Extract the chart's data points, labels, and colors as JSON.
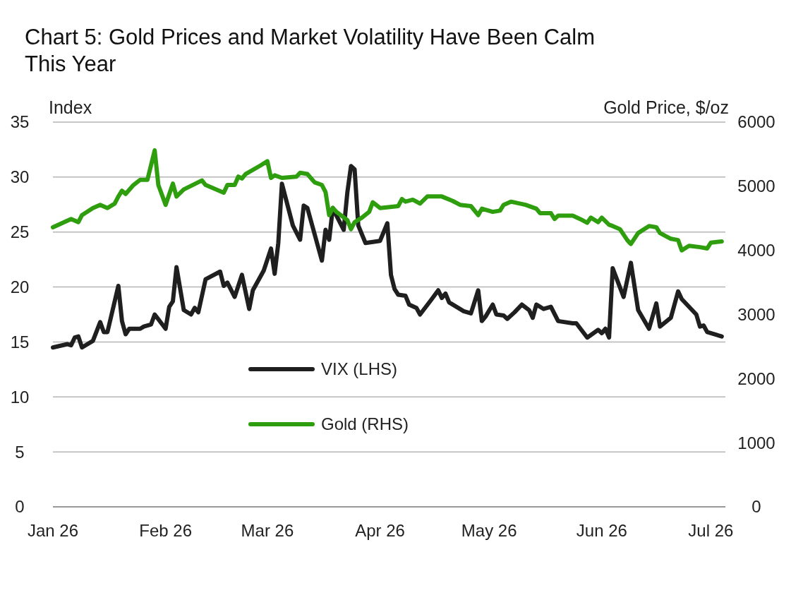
{
  "chart_data": {
    "type": "line",
    "title": "Chart 5: Gold Prices and Market Volatility Have Been Calm This Year",
    "ylabel": "Index",
    "y2label": "Gold Price, $/oz",
    "xlim": [
      "2026-01-01",
      "2026-07-05"
    ],
    "xticks": [
      {
        "value": "2026-01-01",
        "label": "Jan 26"
      },
      {
        "value": "2026-02-01",
        "label": "Feb 26"
      },
      {
        "value": "2026-03-01",
        "label": "Mar 26"
      },
      {
        "value": "2026-04-01",
        "label": "Apr 26"
      },
      {
        "value": "2026-05-01",
        "label": "May 26"
      },
      {
        "value": "2026-06-01",
        "label": "Jun 26"
      },
      {
        "value": "2026-07-01",
        "label": "Jul 26"
      }
    ],
    "ylim": [
      0,
      35
    ],
    "yticks": [
      0,
      5,
      10,
      15,
      20,
      25,
      30,
      35
    ],
    "y2lim": [
      0,
      6000
    ],
    "y2ticks": [
      0,
      1000,
      2000,
      3000,
      4000,
      5000,
      6000
    ],
    "grid": "y",
    "legend": "bottom left",
    "line_style": "solid",
    "marker": "none",
    "series": [
      {
        "name": "VIX (LHS)",
        "color": "#1f1f1f",
        "axis": "y",
        "x": [
          "2026-01-01",
          "2026-01-05",
          "2026-01-06",
          "2026-01-07",
          "2026-01-08",
          "2026-01-09",
          "2026-01-12",
          "2026-01-14",
          "2026-01-15",
          "2026-01-16",
          "2026-01-19",
          "2026-01-20",
          "2026-01-21",
          "2026-01-22",
          "2026-01-25",
          "2026-01-26",
          "2026-01-28",
          "2026-01-29",
          "2026-02-01",
          "2026-02-02",
          "2026-02-03",
          "2026-02-04",
          "2026-02-06",
          "2026-02-08",
          "2026-02-09",
          "2026-02-10",
          "2026-02-12",
          "2026-02-16",
          "2026-02-17",
          "2026-02-18",
          "2026-02-20",
          "2026-02-22",
          "2026-02-24",
          "2026-02-25",
          "2026-02-28",
          "2026-03-02",
          "2026-03-03",
          "2026-03-04",
          "2026-03-05",
          "2026-03-08",
          "2026-03-10",
          "2026-03-11",
          "2026-03-12",
          "2026-03-16",
          "2026-03-17",
          "2026-03-18",
          "2026-03-19",
          "2026-03-20",
          "2026-03-22",
          "2026-03-23",
          "2026-03-24",
          "2026-03-25",
          "2026-03-26",
          "2026-03-28",
          "2026-04-01",
          "2026-04-03",
          "2026-04-04",
          "2026-04-05",
          "2026-04-06",
          "2026-04-08",
          "2026-04-09",
          "2026-04-11",
          "2026-04-12",
          "2026-04-15",
          "2026-04-17",
          "2026-04-18",
          "2026-04-19",
          "2026-04-20",
          "2026-04-24",
          "2026-04-26",
          "2026-04-28",
          "2026-04-29",
          "2026-04-30",
          "2026-05-02",
          "2026-05-03",
          "2026-05-05",
          "2026-05-06",
          "2026-05-08",
          "2026-05-10",
          "2026-05-12",
          "2026-05-13",
          "2026-05-14",
          "2026-05-16",
          "2026-05-18",
          "2026-05-20",
          "2026-05-24",
          "2026-05-25",
          "2026-05-28",
          "2026-05-31",
          "2026-06-01",
          "2026-06-02",
          "2026-06-03",
          "2026-06-04",
          "2026-06-07",
          "2026-06-09",
          "2026-06-11",
          "2026-06-14",
          "2026-06-16",
          "2026-06-17",
          "2026-06-20",
          "2026-06-22",
          "2026-06-23",
          "2026-06-27",
          "2026-06-28",
          "2026-06-29",
          "2026-06-30",
          "2026-07-04"
        ],
        "values": [
          14.5,
          14.8,
          14.7,
          15.4,
          15.5,
          14.5,
          15.1,
          16.8,
          15.9,
          15.9,
          20.1,
          16.9,
          15.7,
          16.2,
          16.2,
          16.4,
          16.6,
          17.5,
          16.2,
          18.2,
          18.7,
          21.8,
          17.9,
          17.5,
          18.1,
          17.7,
          20.7,
          21.4,
          20.1,
          20.4,
          19.1,
          21.1,
          18.0,
          19.7,
          21.5,
          23.5,
          21.2,
          24.0,
          29.4,
          25.6,
          24.3,
          27.4,
          27.2,
          22.4,
          25.2,
          24.3,
          27.2,
          26.5,
          25.2,
          28.6,
          31.0,
          30.7,
          25.6,
          24.0,
          24.2,
          25.8,
          21.1,
          19.8,
          19.3,
          19.2,
          18.4,
          18.1,
          17.5,
          18.8,
          19.7,
          19.0,
          19.4,
          18.6,
          17.8,
          17.6,
          19.7,
          16.9,
          17.3,
          18.4,
          17.5,
          17.4,
          17.1,
          17.7,
          18.4,
          17.9,
          17.2,
          18.4,
          18.0,
          18.2,
          16.9,
          16.7,
          16.7,
          15.4,
          16.1,
          15.8,
          16.2,
          15.4,
          21.7,
          19.1,
          22.2,
          17.9,
          16.2,
          18.5,
          16.4,
          17.2,
          19.6,
          18.9,
          17.5,
          16.4,
          16.5,
          15.9,
          15.5
        ]
      },
      {
        "name": "Gold (RHS)",
        "color": "#2e9e0f",
        "axis": "y2",
        "x": [
          "2026-01-01",
          "2026-01-06",
          "2026-01-08",
          "2026-01-09",
          "2026-01-12",
          "2026-01-14",
          "2026-01-16",
          "2026-01-18",
          "2026-01-19",
          "2026-01-20",
          "2026-01-21",
          "2026-01-23",
          "2026-01-25",
          "2026-01-27",
          "2026-01-29",
          "2026-01-30",
          "2026-02-01",
          "2026-02-03",
          "2026-02-04",
          "2026-02-06",
          "2026-02-11",
          "2026-02-12",
          "2026-02-17",
          "2026-02-18",
          "2026-02-20",
          "2026-02-21",
          "2026-02-22",
          "2026-02-23",
          "2026-02-27",
          "2026-03-01",
          "2026-03-02",
          "2026-03-03",
          "2026-03-05",
          "2026-03-09",
          "2026-03-10",
          "2026-03-12",
          "2026-03-14",
          "2026-03-16",
          "2026-03-17",
          "2026-03-18",
          "2026-03-19",
          "2026-03-20",
          "2026-03-23",
          "2026-03-24",
          "2026-03-25",
          "2026-03-27",
          "2026-03-29",
          "2026-03-30",
          "2026-04-01",
          "2026-04-06",
          "2026-04-07",
          "2026-04-08",
          "2026-04-10",
          "2026-04-12",
          "2026-04-14",
          "2026-04-18",
          "2026-04-21",
          "2026-04-23",
          "2026-04-26",
          "2026-04-28",
          "2026-04-29",
          "2026-05-02",
          "2026-05-04",
          "2026-05-05",
          "2026-05-07",
          "2026-05-11",
          "2026-05-14",
          "2026-05-15",
          "2026-05-18",
          "2026-05-19",
          "2026-05-20",
          "2026-05-24",
          "2026-05-26",
          "2026-05-28",
          "2026-05-29",
          "2026-05-31",
          "2026-06-01",
          "2026-06-03",
          "2026-06-04",
          "2026-06-06",
          "2026-06-08",
          "2026-06-09",
          "2026-06-11",
          "2026-06-14",
          "2026-06-16",
          "2026-06-17",
          "2026-06-20",
          "2026-06-22",
          "2026-06-23",
          "2026-06-25",
          "2026-06-28",
          "2026-06-30",
          "2026-07-01",
          "2026-07-04"
        ],
        "values": [
          4360,
          4490,
          4440,
          4550,
          4660,
          4710,
          4660,
          4730,
          4840,
          4930,
          4880,
          5010,
          5100,
          5100,
          5560,
          5020,
          4710,
          5040,
          4840,
          4950,
          5090,
          5020,
          4900,
          5020,
          5020,
          5150,
          5120,
          5190,
          5320,
          5390,
          5130,
          5170,
          5130,
          5150,
          5210,
          5190,
          5060,
          5020,
          4910,
          4550,
          4660,
          4600,
          4470,
          4330,
          4440,
          4510,
          4600,
          4750,
          4660,
          4690,
          4800,
          4760,
          4790,
          4730,
          4840,
          4840,
          4770,
          4710,
          4690,
          4550,
          4650,
          4600,
          4620,
          4710,
          4760,
          4710,
          4650,
          4580,
          4580,
          4490,
          4540,
          4540,
          4490,
          4430,
          4510,
          4440,
          4510,
          4400,
          4380,
          4330,
          4160,
          4100,
          4270,
          4380,
          4360,
          4270,
          4180,
          4160,
          4000,
          4070,
          4050,
          4030,
          4120,
          4140
        ]
      }
    ]
  }
}
